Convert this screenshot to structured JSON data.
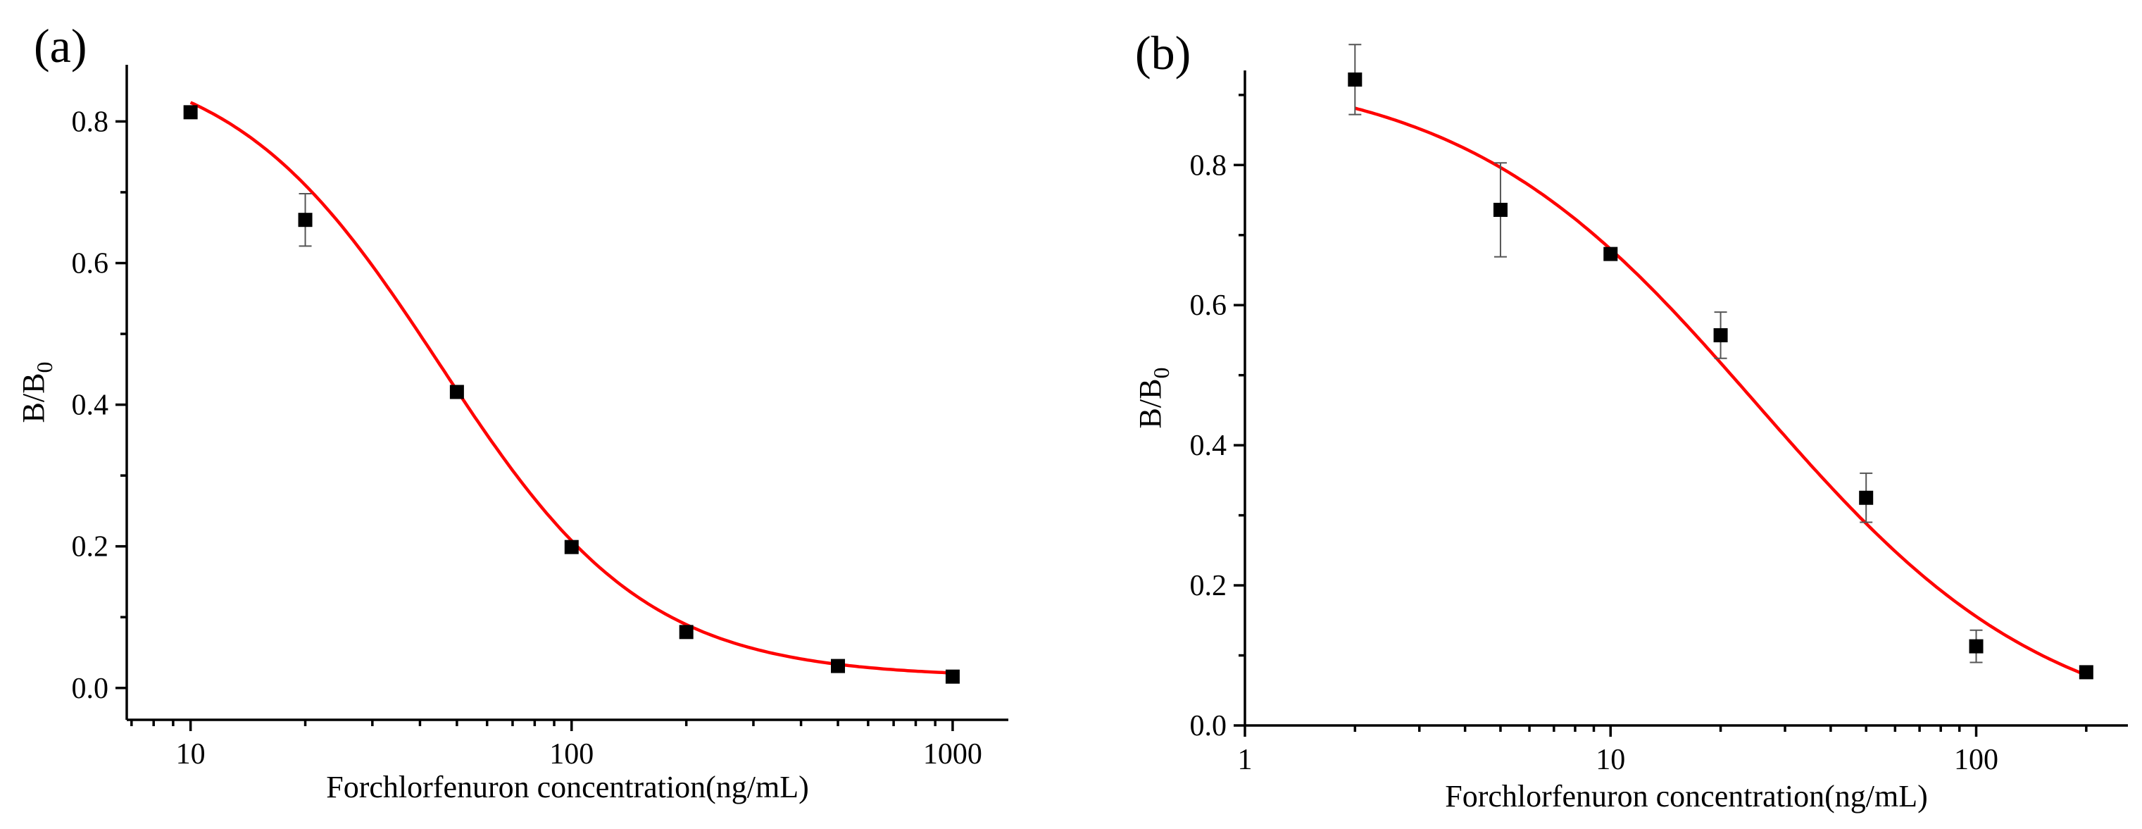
{
  "colors": {
    "fit": "#ff0000",
    "marker": "#000000",
    "errorbar": "#555555",
    "axis": "#000000"
  },
  "chart_data": [
    {
      "panel_label": "(a)",
      "type": "scatter",
      "xscale": "log",
      "xlabel": "Forchlorfenuron concentration(ng/mL)",
      "ylabel_main": "B/B",
      "ylabel_sub": "0",
      "xlim": [
        6.8,
        1400
      ],
      "ylim": [
        -0.045,
        0.88
      ],
      "x_ticks": [
        10,
        100,
        1000
      ],
      "x_tick_labels": [
        "10",
        "100",
        "1000"
      ],
      "y_ticks": [
        0.0,
        0.2,
        0.4,
        0.6,
        0.8
      ],
      "y_tick_labels": [
        "0.0",
        "0.2",
        "0.4",
        "0.6",
        "0.8"
      ],
      "points": [
        {
          "x": 10,
          "y": 0.813,
          "err": 0.005
        },
        {
          "x": 20,
          "y": 0.661,
          "err": 0.037
        },
        {
          "x": 50,
          "y": 0.418,
          "err": 0.006
        },
        {
          "x": 100,
          "y": 0.199,
          "err": 0.005
        },
        {
          "x": 200,
          "y": 0.079,
          "err": 0.004
        },
        {
          "x": 500,
          "y": 0.031,
          "err": 0.003
        },
        {
          "x": 1000,
          "y": 0.016,
          "err": 0.003
        }
      ],
      "fit": {
        "model": "four-parameter logistic",
        "top": 0.9,
        "bottom": 0.015,
        "ic50": 45,
        "hill": 1.6,
        "x_range": [
          10,
          1000
        ]
      }
    },
    {
      "panel_label": "(b)",
      "type": "scatter",
      "xscale": "log",
      "xlabel": "Forchlorfenuron concentration(ng/mL)",
      "ylabel_main": "B/B",
      "ylabel_sub": "0",
      "xlim": [
        1,
        260
      ],
      "ylim": [
        0,
        0.935
      ],
      "x_ticks": [
        1,
        10,
        100
      ],
      "x_tick_labels": [
        "1",
        "10",
        "100"
      ],
      "y_ticks": [
        0.0,
        0.2,
        0.4,
        0.6,
        0.8
      ],
      "y_tick_labels": [
        "0.0",
        "0.2",
        "0.4",
        "0.6",
        "0.8"
      ],
      "points": [
        {
          "x": 2,
          "y": 0.922,
          "err": 0.05
        },
        {
          "x": 5,
          "y": 0.736,
          "err": 0.067
        },
        {
          "x": 10,
          "y": 0.673,
          "err": 0.005
        },
        {
          "x": 20,
          "y": 0.557,
          "err": 0.033
        },
        {
          "x": 50,
          "y": 0.325,
          "err": 0.035
        },
        {
          "x": 100,
          "y": 0.113,
          "err": 0.023
        },
        {
          "x": 200,
          "y": 0.076,
          "err": 0.005
        }
      ],
      "fit": {
        "model": "four-parameter logistic",
        "top": 0.94,
        "bottom": -0.02,
        "ic50": 25,
        "hill": 1.08,
        "x_range": [
          2,
          200
        ]
      }
    }
  ]
}
